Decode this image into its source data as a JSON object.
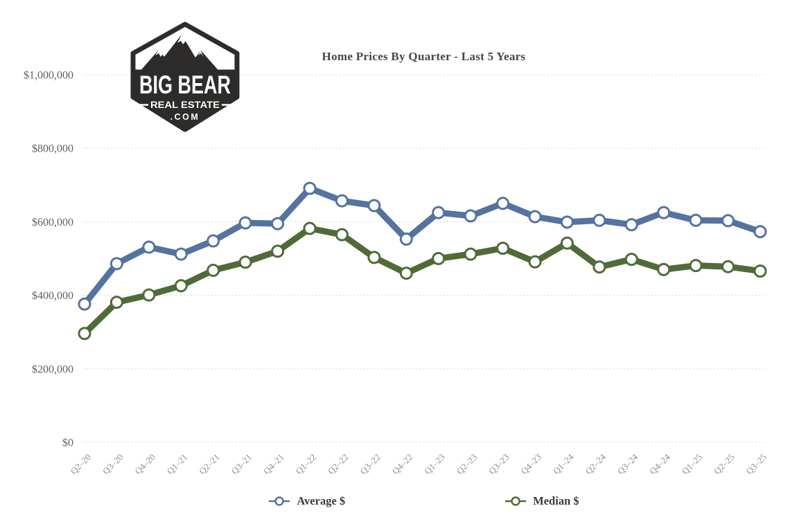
{
  "logo": {
    "line1": "BIG BEAR",
    "line2": "REAL ESTATE",
    "line3": ".COM",
    "badge_color": "#2d2c2a"
  },
  "chart_data": {
    "type": "line",
    "title": "Home Prices By Quarter - Last 5 Years",
    "categories": [
      "Q2–20",
      "Q3–20",
      "Q4–20",
      "Q1–21",
      "Q2–21",
      "Q3–21",
      "Q4–21",
      "Q1–22",
      "Q2–22",
      "Q3–22",
      "Q4–22",
      "Q1–23",
      "Q2–23",
      "Q3–23",
      "Q4–23",
      "Q1–24",
      "Q2–24",
      "Q3–24",
      "Q4–24",
      "Q1–25",
      "Q2–25",
      "Q3–25"
    ],
    "series": [
      {
        "name": "Average $",
        "color": "#54739e",
        "marker": "open-circle",
        "values": [
          376000,
          486000,
          531000,
          512000,
          548000,
          597000,
          595000,
          691000,
          657000,
          644000,
          553000,
          625000,
          616000,
          650000,
          614000,
          599000,
          604000,
          592000,
          625000,
          604000,
          603000,
          573000
        ]
      },
      {
        "name": "Median $",
        "color": "#4f6b38",
        "marker": "open-circle",
        "values": [
          296000,
          381000,
          401000,
          426000,
          468000,
          490000,
          520000,
          582000,
          565000,
          503000,
          460000,
          500000,
          512000,
          528000,
          491000,
          542000,
          477000,
          498000,
          470000,
          481000,
          478000,
          466000
        ]
      }
    ],
    "xlabel": "",
    "ylabel": "",
    "ylim": [
      0,
      1000000
    ],
    "ytick_interval": 200000,
    "ytick_labels": [
      "$0",
      "$200,000",
      "$400,000",
      "$600,000",
      "$800,000",
      "$1,000,000"
    ],
    "grid": "horizontal-dotted",
    "grid_color": "#cbcbcb",
    "background": "#ffffff",
    "legend_position": "bottom"
  }
}
